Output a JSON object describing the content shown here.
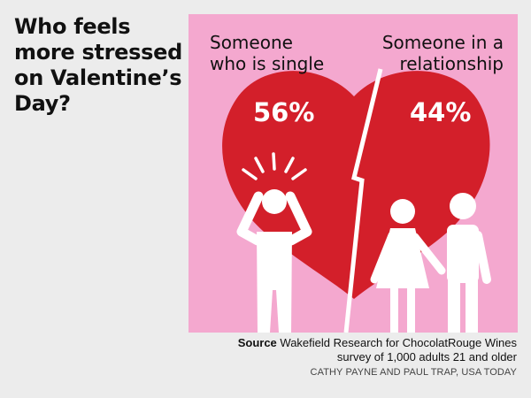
{
  "title": "Who feels more stressed on Valentine’s Day?",
  "colors": {
    "background": "#ececec",
    "panel": "#f4a8cf",
    "heart": "#d31f2a",
    "figure": "#ffffff",
    "text": "#111111"
  },
  "chart_data": {
    "type": "pie",
    "categories": [
      "Someone who is single",
      "Someone in a relationship"
    ],
    "values": [
      56,
      44
    ],
    "value_labels": [
      "56%",
      "44%"
    ]
  },
  "source": {
    "label": "Source",
    "line1": "Wakefield Research for ChocolatRouge Wines",
    "line2": "survey of 1,000 adults 21 and older"
  },
  "credit": "CATHY PAYNE AND PAUL TRAP, USA TODAY",
  "icons": [
    "heart-icon",
    "stressed-person-icon",
    "woman-icon",
    "man-icon"
  ]
}
